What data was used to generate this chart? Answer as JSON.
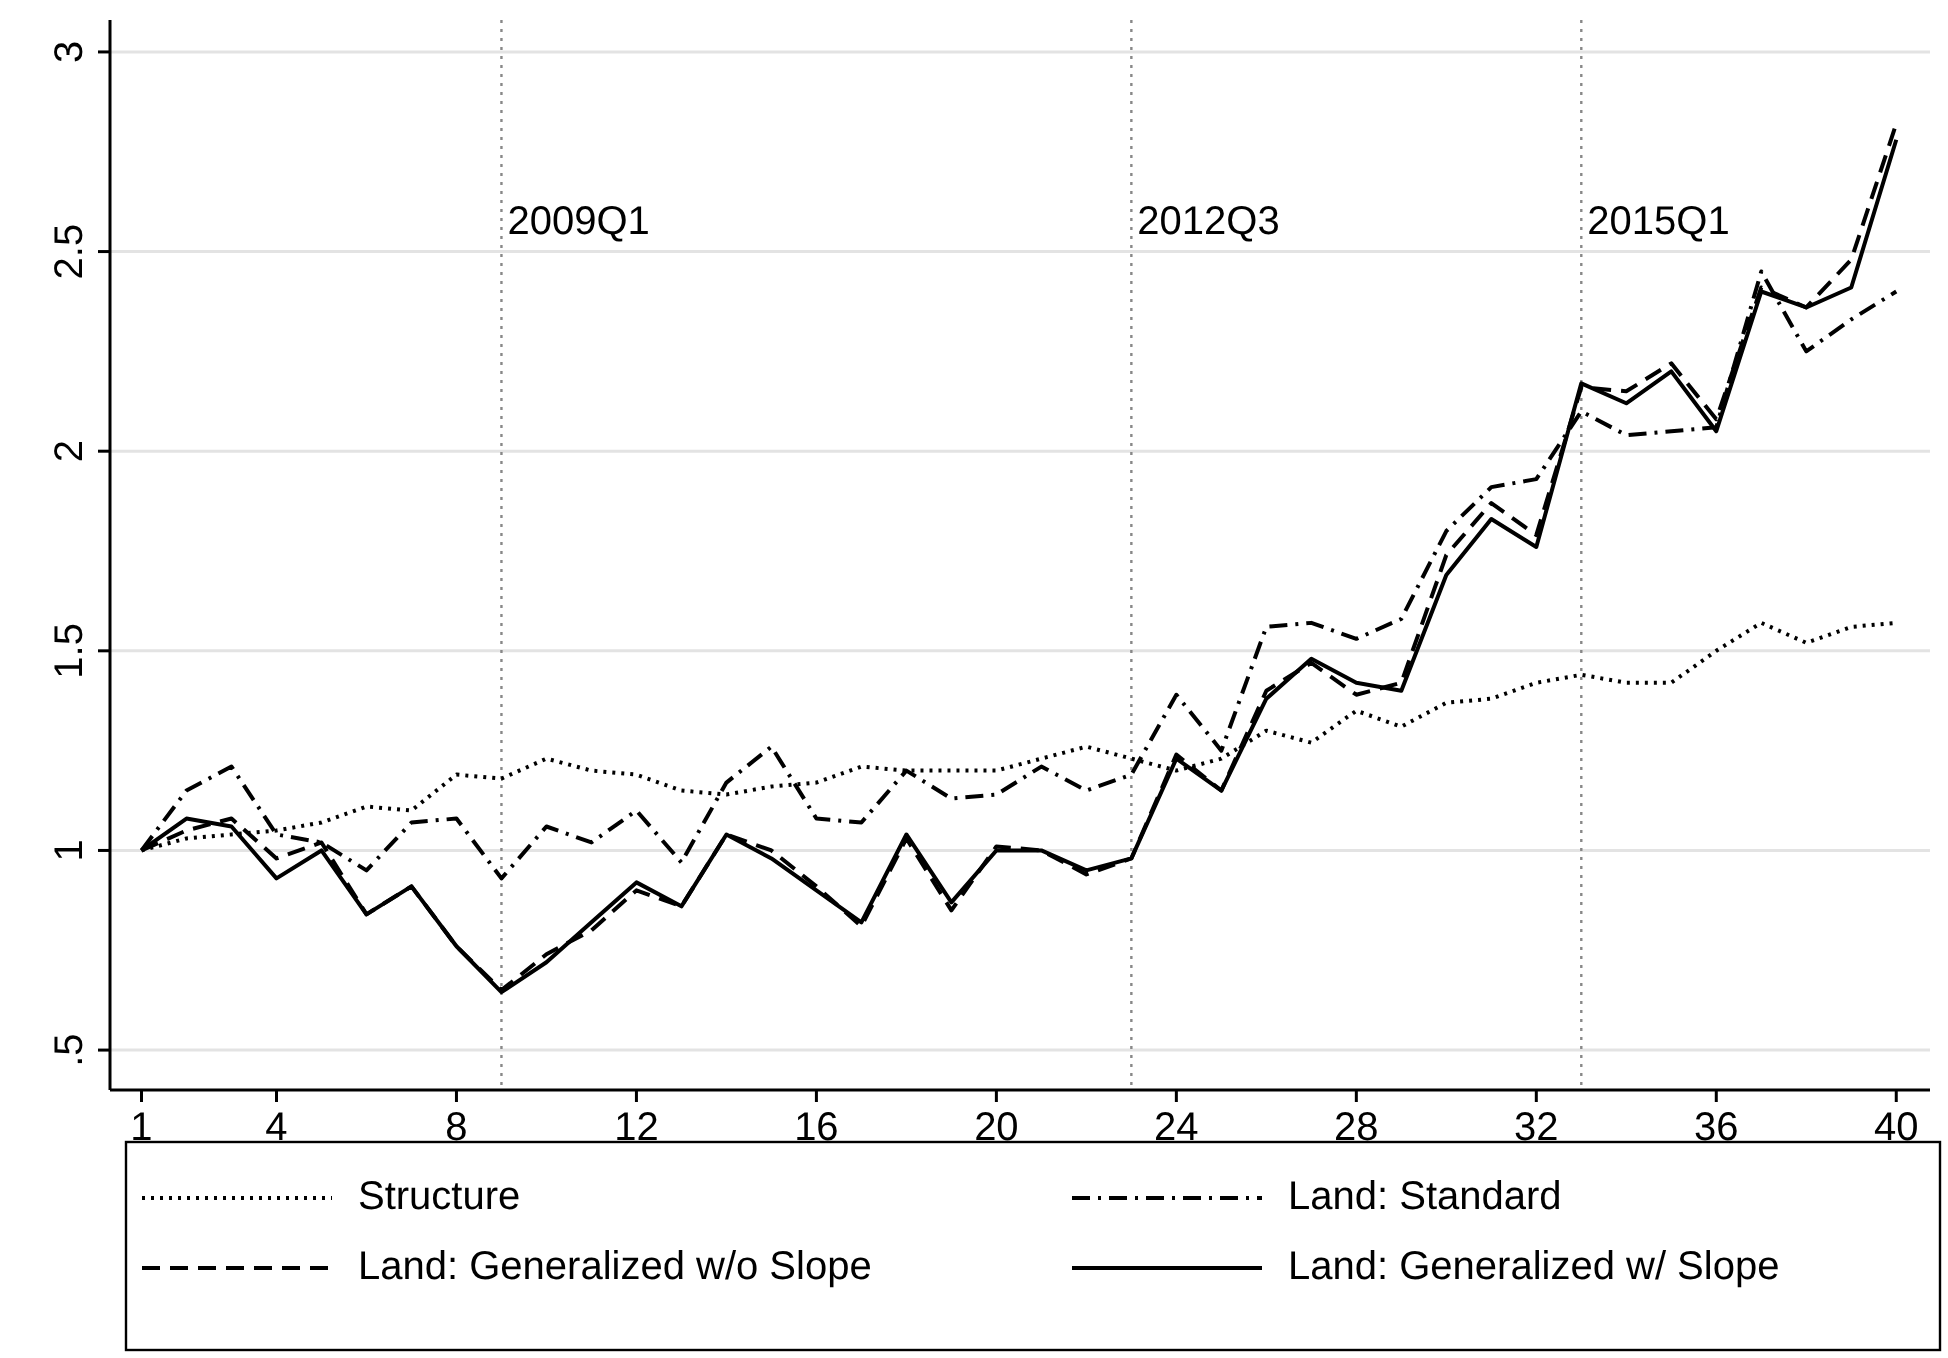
{
  "chart_data": {
    "type": "line",
    "x": [
      1,
      2,
      3,
      4,
      5,
      6,
      7,
      8,
      9,
      10,
      11,
      12,
      13,
      14,
      15,
      16,
      17,
      18,
      19,
      20,
      21,
      22,
      23,
      24,
      25,
      26,
      27,
      28,
      29,
      30,
      31,
      32,
      33,
      34,
      35,
      36,
      37,
      38,
      39,
      40
    ],
    "series": [
      {
        "name": "Structure",
        "color": "#000000",
        "line_style": "dotted",
        "values": [
          1.0,
          1.03,
          1.04,
          1.05,
          1.07,
          1.11,
          1.1,
          1.19,
          1.18,
          1.23,
          1.2,
          1.19,
          1.15,
          1.14,
          1.16,
          1.17,
          1.21,
          1.2,
          1.2,
          1.2,
          1.23,
          1.26,
          1.23,
          1.2,
          1.23,
          1.3,
          1.27,
          1.35,
          1.31,
          1.37,
          1.38,
          1.42,
          1.44,
          1.42,
          1.42,
          1.5,
          1.57,
          1.52,
          1.56,
          1.57
        ]
      },
      {
        "name": "Land: Standard",
        "color": "#000000",
        "line_style": "dashdot",
        "values": [
          1.0,
          1.15,
          1.21,
          1.04,
          1.02,
          0.95,
          1.07,
          1.08,
          0.93,
          1.06,
          1.02,
          1.1,
          0.97,
          1.17,
          1.26,
          1.08,
          1.07,
          1.2,
          1.13,
          1.14,
          1.21,
          1.15,
          1.19,
          1.39,
          1.25,
          1.56,
          1.57,
          1.53,
          1.58,
          1.8,
          1.91,
          1.93,
          2.1,
          2.04,
          2.05,
          2.06,
          2.45,
          2.25,
          2.33,
          2.4
        ]
      },
      {
        "name": "Land: Generalized w/o Slope",
        "color": "#000000",
        "line_style": "dashed",
        "values": [
          1.0,
          1.05,
          1.08,
          0.98,
          1.02,
          0.84,
          0.91,
          0.76,
          0.65,
          0.74,
          0.8,
          0.9,
          0.86,
          1.04,
          1.0,
          0.91,
          0.81,
          1.03,
          0.85,
          1.01,
          1.0,
          0.94,
          0.98,
          1.24,
          1.15,
          1.4,
          1.47,
          1.39,
          1.42,
          1.74,
          1.87,
          1.79,
          2.16,
          2.15,
          2.22,
          2.08,
          2.41,
          2.36,
          2.48,
          2.82
        ]
      },
      {
        "name": "Land: Generalized w/ Slope",
        "color": "#000000",
        "line_style": "solid",
        "values": [
          1.0,
          1.08,
          1.06,
          0.93,
          1.0,
          0.84,
          0.91,
          0.76,
          0.645,
          0.72,
          0.82,
          0.92,
          0.86,
          1.04,
          0.98,
          0.9,
          0.82,
          1.04,
          0.87,
          1.0,
          1.0,
          0.95,
          0.98,
          1.23,
          1.15,
          1.38,
          1.48,
          1.42,
          1.4,
          1.69,
          1.83,
          1.76,
          2.17,
          2.12,
          2.2,
          2.05,
          2.4,
          2.36,
          2.41,
          2.78
        ]
      }
    ],
    "xlim": [
      0.3,
      40.75
    ],
    "xticks": [
      1,
      4,
      8,
      12,
      16,
      20,
      24,
      28,
      32,
      36,
      40
    ],
    "ylim": [
      0.4,
      3.08
    ],
    "yticks": [
      {
        "value": 0.5,
        "label": ".5"
      },
      1,
      1.5,
      2,
      2.5,
      3
    ],
    "grid": "y",
    "legend": "bottom",
    "ref_lines": [
      {
        "axis": "x",
        "value": 9,
        "label": "2009Q1",
        "color": "#888888",
        "line_style": "dotted"
      },
      {
        "axis": "x",
        "value": 23,
        "label": "2012Q3",
        "color": "#888888",
        "line_style": "dotted"
      },
      {
        "axis": "x",
        "value": 33,
        "label": "2015Q1",
        "color": "#888888",
        "line_style": "dotted"
      }
    ]
  }
}
